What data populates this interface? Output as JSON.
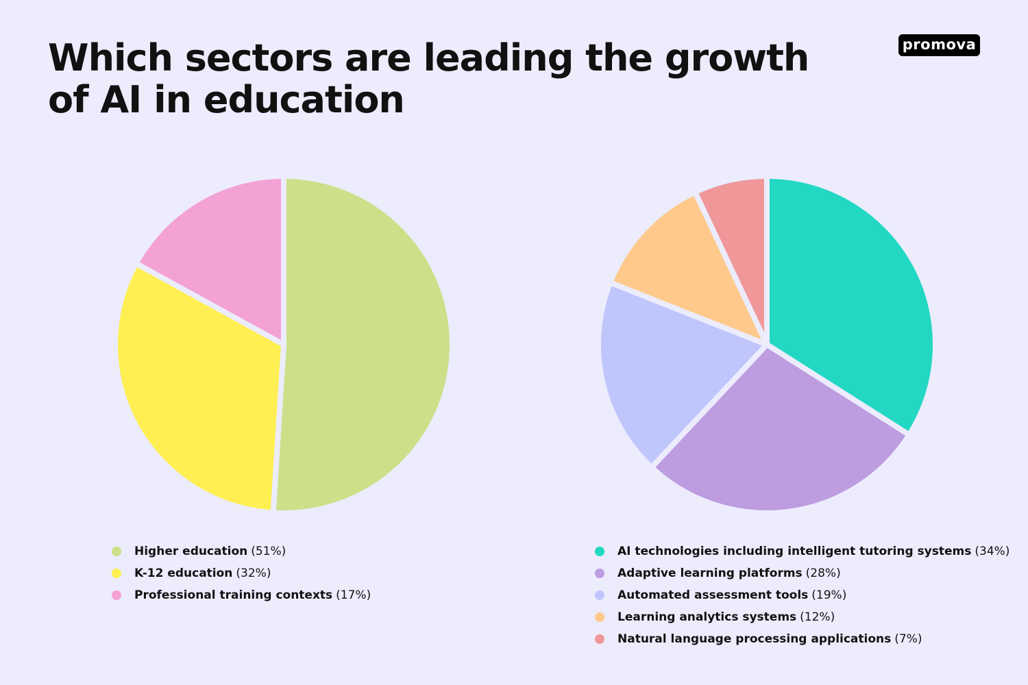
{
  "title": "Which sectors are leading the growth of AI in education",
  "logo": "promova",
  "background": "#ececfd",
  "chart_data": [
    {
      "type": "pie",
      "categories": [
        "Higher education",
        "K-12 education",
        "Professional training contexts"
      ],
      "values": [
        51,
        32,
        17
      ],
      "percent_labels": [
        "(51%)",
        "(32%)",
        "(17%)"
      ],
      "colors": [
        "#cbe088",
        "#ffef52",
        "#f4a1d4"
      ],
      "legend_position": "bottom"
    },
    {
      "type": "pie",
      "categories": [
        "AI technologies including intelligent tutoring systems",
        "Adaptive learning platforms",
        "Automated assessment tools",
        "Learning analytics systems",
        "Natural language processing applications"
      ],
      "values": [
        34,
        28,
        19,
        12,
        7
      ],
      "percent_labels": [
        "(34%)",
        "(28%)",
        "(19%)",
        "(12%)",
        "(7%)"
      ],
      "colors": [
        "#22d8c2",
        "#bd9ce0",
        "#bec6fc",
        "#fec98b",
        "#f0979a"
      ],
      "legend_position": "bottom"
    }
  ]
}
